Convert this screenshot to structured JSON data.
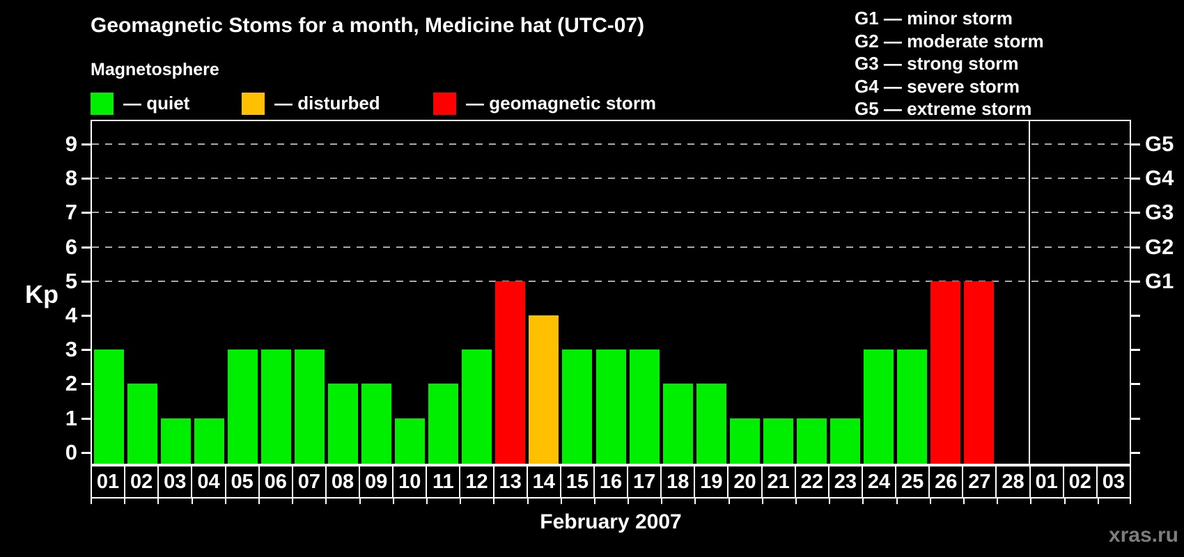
{
  "page": {
    "background": "#000000",
    "watermark": "xras.ru"
  },
  "header": {
    "title": "Geomagnetic Stoms for a month, Medicine hat (UTC-07)",
    "legend_title": "Magnetosphere",
    "legend": [
      {
        "status": "quiet",
        "label": "— quiet",
        "color": "#00ee00"
      },
      {
        "status": "disturbed",
        "label": "— disturbed",
        "color": "#ffc000"
      },
      {
        "status": "storm",
        "label": "— geomagnetic storm",
        "color": "#ff0000"
      }
    ],
    "g_scale_legend": [
      "G1 — minor storm",
      "G2 — moderate storm",
      "G3 — strong storm",
      "G4 — severe storm",
      "G5 — extreme storm"
    ]
  },
  "chart_data": {
    "type": "bar",
    "title": "Geomagnetic Stoms for a month, Medicine hat (UTC-07)",
    "xlabel": "February 2007",
    "ylabel": "Kp",
    "ylim": [
      0,
      9
    ],
    "yticks": [
      0,
      1,
      2,
      3,
      4,
      5,
      6,
      7,
      8,
      9
    ],
    "gridlines_at_kp": [
      5,
      6,
      7,
      8,
      9
    ],
    "gridline_color": "#aaaaaa",
    "grid": "dashed horizontal at storm levels",
    "legend_position": "top-left and top-right",
    "right_axis": [
      {
        "label": "G1",
        "kp": 5
      },
      {
        "label": "G2",
        "kp": 6
      },
      {
        "label": "G3",
        "kp": 7
      },
      {
        "label": "G4",
        "kp": 8
      },
      {
        "label": "G5",
        "kp": 9
      }
    ],
    "categories": [
      "01",
      "02",
      "03",
      "04",
      "05",
      "06",
      "07",
      "08",
      "09",
      "10",
      "11",
      "12",
      "13",
      "14",
      "15",
      "16",
      "17",
      "18",
      "19",
      "20",
      "21",
      "22",
      "23",
      "24",
      "25",
      "26",
      "27",
      "28",
      "01",
      "02",
      "03"
    ],
    "values": [
      3,
      2,
      1,
      1,
      3,
      3,
      3,
      2,
      2,
      1,
      2,
      3,
      5,
      4,
      3,
      3,
      3,
      2,
      2,
      1,
      1,
      1,
      1,
      3,
      3,
      5,
      5,
      0,
      0,
      0,
      0
    ],
    "statuses": [
      "quiet",
      "quiet",
      "quiet",
      "quiet",
      "quiet",
      "quiet",
      "quiet",
      "quiet",
      "quiet",
      "quiet",
      "quiet",
      "quiet",
      "storm",
      "disturbed",
      "quiet",
      "quiet",
      "quiet",
      "quiet",
      "quiet",
      "quiet",
      "quiet",
      "quiet",
      "quiet",
      "quiet",
      "quiet",
      "storm",
      "storm",
      "none",
      "none",
      "none",
      "none"
    ],
    "status_colors": {
      "quiet": "#00ee00",
      "disturbed": "#ffc000",
      "storm": "#ff0000"
    },
    "month_separator_after_category_index": 27,
    "month_label": "February 2007"
  }
}
